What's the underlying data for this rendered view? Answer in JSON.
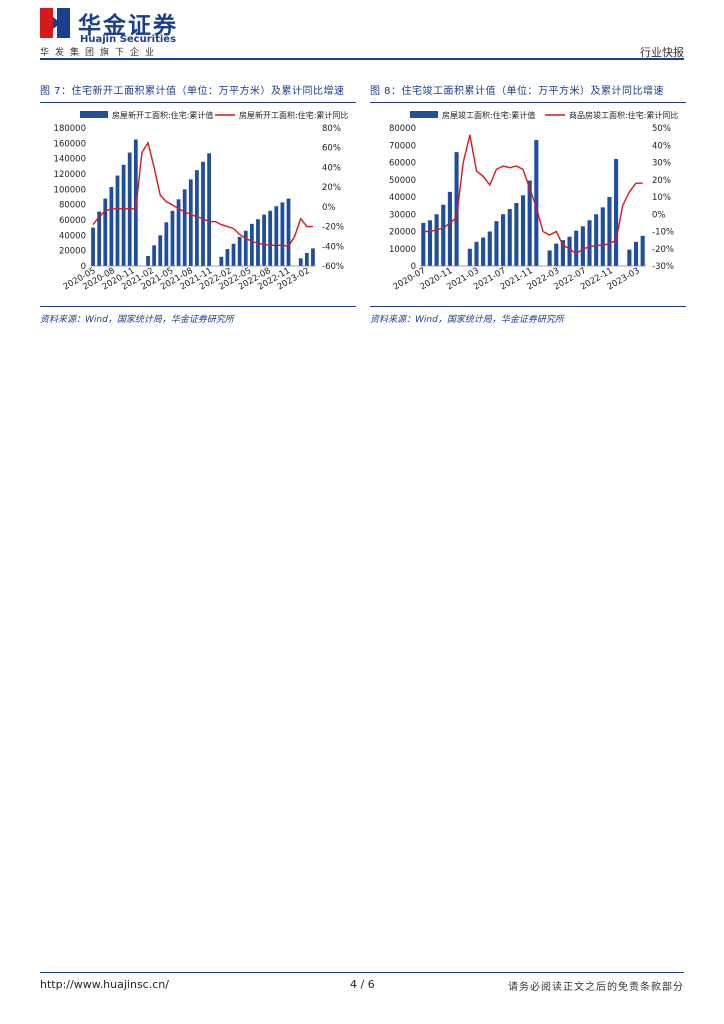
{
  "header": {
    "logo_cn": "华金证券",
    "logo_en": "Huajin Securities",
    "group_line": "华发集团旗下企业",
    "report_type": "行业快报"
  },
  "colors": {
    "bar": "#1f4e9c",
    "line": "#d7191c",
    "brand": "#1a3f8c"
  },
  "figures": [
    {
      "title": "图 7：住宅新开工面积累计值（单位：万平方米）及累计同比增速",
      "source": "资料来源：Wind，国家统计局，华金证券研究所",
      "chart_data": {
        "type": "bar+line",
        "legend": [
          "房屋新开工面积:住宅:累计值",
          "房屋新开工面积:住宅:累计同比"
        ],
        "x_tick_labels": [
          "2020-05",
          "2020-08",
          "2020-11",
          "2021-02",
          "2021-05",
          "2021-08",
          "2021-11",
          "2022-02",
          "2022-05",
          "2022-08",
          "2022-11",
          "2023-02"
        ],
        "y_left": {
          "ticks": [
            "0",
            "20000",
            "40000",
            "60000",
            "80000",
            "100000",
            "120000",
            "140000",
            "160000",
            "180000"
          ],
          "min": 0,
          "max": 180000
        },
        "y_right": {
          "ticks": [
            "-60%",
            "-40%",
            "-20%",
            "0%",
            "20%",
            "40%",
            "60%",
            "80%"
          ],
          "min": -60,
          "max": 80
        },
        "bars": [
          50000,
          71000,
          88000,
          103000,
          118000,
          132000,
          148000,
          165000,
          null,
          13000,
          27000,
          40000,
          57000,
          72000,
          87000,
          100000,
          113000,
          125000,
          136000,
          147000,
          null,
          12000,
          22000,
          29000,
          38000,
          46000,
          55000,
          61000,
          67000,
          72000,
          78000,
          83000,
          88000,
          null,
          10000,
          17000,
          23000
        ],
        "line": [
          -18,
          -10,
          -4,
          -2,
          -2,
          -2,
          -2,
          -2,
          55,
          65,
          40,
          12,
          5,
          2,
          -2,
          -5,
          -8,
          -10,
          -12,
          -15,
          -15,
          -18,
          -20,
          -22,
          -28,
          -32,
          -35,
          -37,
          -38,
          -39,
          -39,
          -39,
          -40,
          -30,
          -12,
          -20,
          -20
        ]
      }
    },
    {
      "title": "图 8：住宅竣工面积累计值（单位：万平方米）及累计同比增速",
      "source": "资料来源：Wind，国家统计局，华金证券研究所",
      "chart_data": {
        "type": "bar+line",
        "legend": [
          "房屋竣工面积:住宅:累计值",
          "商品房竣工面积:住宅:累计同比"
        ],
        "x_tick_labels": [
          "2020-07",
          "2020-11",
          "2021-03",
          "2021-07",
          "2021-11",
          "2022-03",
          "2022-07",
          "2022-11",
          "2023-03"
        ],
        "y_left": {
          "ticks": [
            "0",
            "10000",
            "20000",
            "30000",
            "40000",
            "50000",
            "60000",
            "70000",
            "80000"
          ],
          "min": 0,
          "max": 80000
        },
        "y_right": {
          "ticks": [
            "-30%",
            "-20%",
            "-10%",
            "0%",
            "10%",
            "20%",
            "30%",
            "40%",
            "50%"
          ],
          "min": -30,
          "max": 50
        },
        "bars": [
          25000,
          26500,
          30000,
          35500,
          43000,
          66000,
          null,
          10000,
          14000,
          16500,
          20000,
          26000,
          30000,
          33000,
          36500,
          41000,
          49500,
          73000,
          null,
          9000,
          13000,
          15000,
          17000,
          20500,
          23000,
          26500,
          30000,
          34000,
          40000,
          62000,
          null,
          9500,
          14000,
          17500
        ],
        "line": [
          -10,
          -10,
          -9,
          -8,
          -5,
          -2,
          30,
          46,
          25,
          22,
          17,
          26,
          28,
          27,
          28,
          26,
          15,
          4,
          -10,
          -12,
          -10,
          -18,
          -20,
          -23,
          -20,
          -19,
          -18,
          -18,
          -17,
          -15,
          5,
          13,
          18,
          18
        ]
      }
    }
  ],
  "footer": {
    "url": "http://www.huajinsc.cn/",
    "page": "4 / 6",
    "disclaimer": "请务必阅读正文之后的免责条款部分"
  }
}
